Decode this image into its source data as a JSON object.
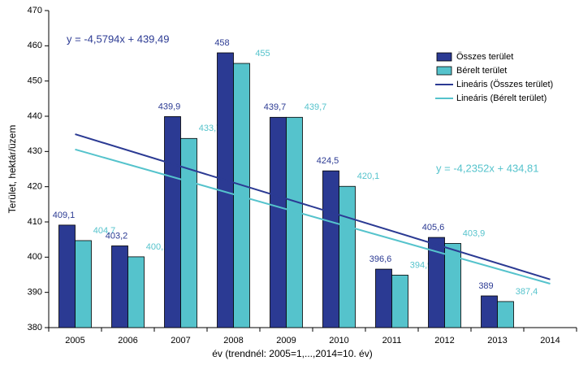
{
  "chart_data": {
    "type": "bar",
    "x_label": "év (trendnél: 2005=1,...,2014=10. év)",
    "y_label": "Terület, hektár/üzem",
    "categories": [
      "2005",
      "2006",
      "2007",
      "2008",
      "2009",
      "2010",
      "2011",
      "2012",
      "2013",
      "2014"
    ],
    "series": [
      {
        "name": "Összes terület",
        "color": "#2b3a93",
        "values": [
          409.1,
          403.2,
          439.9,
          458,
          439.7,
          424.5,
          396.6,
          405.6,
          389,
          null
        ],
        "value_labels": [
          "409,1",
          "403,2",
          "439,9",
          "458",
          "439,7",
          "424,5",
          "396,6",
          "405,6",
          "389",
          null
        ]
      },
      {
        "name": "Bérelt terület",
        "color": "#55c3cc",
        "values": [
          404.7,
          400.1,
          433.7,
          455,
          439.7,
          420.1,
          394.9,
          403.9,
          387.4,
          null
        ],
        "value_labels": [
          "404,7",
          "400,1",
          "433,7",
          "455",
          "439,7",
          "420,1",
          "394,9",
          "403,9",
          "387,4",
          null
        ]
      }
    ],
    "trendlines": [
      {
        "name": "Lineáris (Összes terület)",
        "color": "#2b3a93",
        "slope": -4.5794,
        "intercept": 439.49,
        "equation": "y = -4,5794x + 439,49"
      },
      {
        "name": "Lineáris (Bérelt terület)",
        "color": "#55c3cc",
        "slope": -4.2352,
        "intercept": 434.81,
        "equation": "y = -4,2352x + 434,81"
      }
    ],
    "ylim": [
      380,
      470
    ],
    "yticks": [
      380,
      390,
      400,
      410,
      420,
      430,
      440,
      450,
      460,
      470
    ],
    "grid": false
  }
}
